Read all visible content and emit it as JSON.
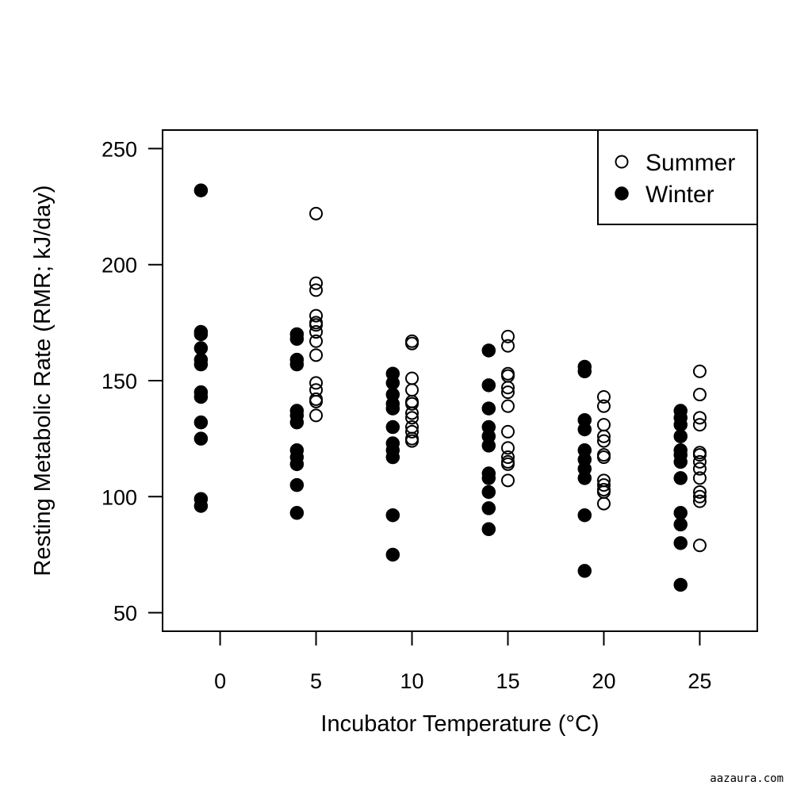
{
  "chart_data": {
    "type": "scatter",
    "xlabel": "Incubator Temperature (°C)",
    "ylabel": "Resting Metabolic Rate (RMR; kJ/day)",
    "xlim": [
      -3,
      28
    ],
    "ylim": [
      42,
      258
    ],
    "xticks": [
      0,
      5,
      10,
      15,
      20,
      25
    ],
    "yticks": [
      50,
      100,
      150,
      200,
      250
    ],
    "legend_position": "top-right",
    "series": [
      {
        "name": "Summer",
        "marker": "open-circle",
        "points": [
          {
            "x": 5,
            "y": 222
          },
          {
            "x": 5,
            "y": 192
          },
          {
            "x": 5,
            "y": 189
          },
          {
            "x": 5,
            "y": 178
          },
          {
            "x": 5,
            "y": 175
          },
          {
            "x": 5,
            "y": 174
          },
          {
            "x": 5,
            "y": 171
          },
          {
            "x": 5,
            "y": 167
          },
          {
            "x": 5,
            "y": 161
          },
          {
            "x": 5,
            "y": 149
          },
          {
            "x": 5,
            "y": 146
          },
          {
            "x": 5,
            "y": 142
          },
          {
            "x": 5,
            "y": 141
          },
          {
            "x": 5,
            "y": 135
          },
          {
            "x": 10,
            "y": 167
          },
          {
            "x": 10,
            "y": 166
          },
          {
            "x": 10,
            "y": 151
          },
          {
            "x": 10,
            "y": 146
          },
          {
            "x": 10,
            "y": 141
          },
          {
            "x": 10,
            "y": 140
          },
          {
            "x": 10,
            "y": 136
          },
          {
            "x": 10,
            "y": 134
          },
          {
            "x": 10,
            "y": 130
          },
          {
            "x": 10,
            "y": 128
          },
          {
            "x": 10,
            "y": 125
          },
          {
            "x": 10,
            "y": 124
          },
          {
            "x": 15,
            "y": 169
          },
          {
            "x": 15,
            "y": 165
          },
          {
            "x": 15,
            "y": 153
          },
          {
            "x": 15,
            "y": 152
          },
          {
            "x": 15,
            "y": 147
          },
          {
            "x": 15,
            "y": 145
          },
          {
            "x": 15,
            "y": 139
          },
          {
            "x": 15,
            "y": 128
          },
          {
            "x": 15,
            "y": 121
          },
          {
            "x": 15,
            "y": 117
          },
          {
            "x": 15,
            "y": 115
          },
          {
            "x": 15,
            "y": 114
          },
          {
            "x": 15,
            "y": 107
          },
          {
            "x": 20,
            "y": 143
          },
          {
            "x": 20,
            "y": 139
          },
          {
            "x": 20,
            "y": 131
          },
          {
            "x": 20,
            "y": 126
          },
          {
            "x": 20,
            "y": 124
          },
          {
            "x": 20,
            "y": 118
          },
          {
            "x": 20,
            "y": 117
          },
          {
            "x": 20,
            "y": 107
          },
          {
            "x": 20,
            "y": 105
          },
          {
            "x": 20,
            "y": 103
          },
          {
            "x": 20,
            "y": 102
          },
          {
            "x": 20,
            "y": 97
          },
          {
            "x": 25,
            "y": 154
          },
          {
            "x": 25,
            "y": 144
          },
          {
            "x": 25,
            "y": 134
          },
          {
            "x": 25,
            "y": 131
          },
          {
            "x": 25,
            "y": 119
          },
          {
            "x": 25,
            "y": 118
          },
          {
            "x": 25,
            "y": 115
          },
          {
            "x": 25,
            "y": 112
          },
          {
            "x": 25,
            "y": 108
          },
          {
            "x": 25,
            "y": 102
          },
          {
            "x": 25,
            "y": 100
          },
          {
            "x": 25,
            "y": 98
          },
          {
            "x": 25,
            "y": 79
          }
        ]
      },
      {
        "name": "Winter",
        "marker": "filled-circle",
        "points": [
          {
            "x": -1,
            "y": 232
          },
          {
            "x": -1,
            "y": 171
          },
          {
            "x": -1,
            "y": 170
          },
          {
            "x": -1,
            "y": 164
          },
          {
            "x": -1,
            "y": 159
          },
          {
            "x": -1,
            "y": 157
          },
          {
            "x": -1,
            "y": 145
          },
          {
            "x": -1,
            "y": 143
          },
          {
            "x": -1,
            "y": 132
          },
          {
            "x": -1,
            "y": 125
          },
          {
            "x": -1,
            "y": 99
          },
          {
            "x": -1,
            "y": 96
          },
          {
            "x": 4,
            "y": 170
          },
          {
            "x": 4,
            "y": 168
          },
          {
            "x": 4,
            "y": 159
          },
          {
            "x": 4,
            "y": 157
          },
          {
            "x": 4,
            "y": 137
          },
          {
            "x": 4,
            "y": 135
          },
          {
            "x": 4,
            "y": 132
          },
          {
            "x": 4,
            "y": 120
          },
          {
            "x": 4,
            "y": 117
          },
          {
            "x": 4,
            "y": 114
          },
          {
            "x": 4,
            "y": 105
          },
          {
            "x": 4,
            "y": 93
          },
          {
            "x": 9,
            "y": 153
          },
          {
            "x": 9,
            "y": 149
          },
          {
            "x": 9,
            "y": 144
          },
          {
            "x": 9,
            "y": 140
          },
          {
            "x": 9,
            "y": 138
          },
          {
            "x": 9,
            "y": 130
          },
          {
            "x": 9,
            "y": 123
          },
          {
            "x": 9,
            "y": 120
          },
          {
            "x": 9,
            "y": 117
          },
          {
            "x": 9,
            "y": 92
          },
          {
            "x": 9,
            "y": 75
          },
          {
            "x": 14,
            "y": 163
          },
          {
            "x": 14,
            "y": 148
          },
          {
            "x": 14,
            "y": 138
          },
          {
            "x": 14,
            "y": 130
          },
          {
            "x": 14,
            "y": 126
          },
          {
            "x": 14,
            "y": 122
          },
          {
            "x": 14,
            "y": 110
          },
          {
            "x": 14,
            "y": 108
          },
          {
            "x": 14,
            "y": 102
          },
          {
            "x": 14,
            "y": 95
          },
          {
            "x": 14,
            "y": 86
          },
          {
            "x": 19,
            "y": 156
          },
          {
            "x": 19,
            "y": 154
          },
          {
            "x": 19,
            "y": 133
          },
          {
            "x": 19,
            "y": 129
          },
          {
            "x": 19,
            "y": 120
          },
          {
            "x": 19,
            "y": 116
          },
          {
            "x": 19,
            "y": 112
          },
          {
            "x": 19,
            "y": 108
          },
          {
            "x": 19,
            "y": 92
          },
          {
            "x": 19,
            "y": 68
          },
          {
            "x": 24,
            "y": 137
          },
          {
            "x": 24,
            "y": 134
          },
          {
            "x": 24,
            "y": 131
          },
          {
            "x": 24,
            "y": 126
          },
          {
            "x": 24,
            "y": 120
          },
          {
            "x": 24,
            "y": 118
          },
          {
            "x": 24,
            "y": 115
          },
          {
            "x": 24,
            "y": 108
          },
          {
            "x": 24,
            "y": 93
          },
          {
            "x": 24,
            "y": 88
          },
          {
            "x": 24,
            "y": 80
          },
          {
            "x": 24,
            "y": 62
          }
        ]
      }
    ]
  },
  "watermark": "aazaura.com"
}
